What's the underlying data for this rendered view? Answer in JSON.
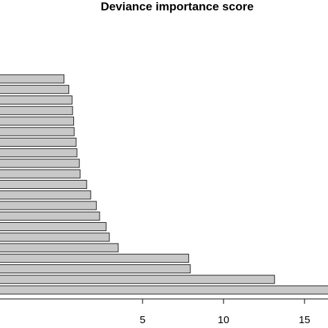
{
  "chart_data": {
    "type": "bar",
    "orientation": "horizontal",
    "title": "Deviance importance score",
    "xlabel": "",
    "ylabel": "",
    "xlim": [
      -3.8,
      16.45
    ],
    "xticks": [
      {
        "value": 5,
        "label": "5"
      },
      {
        "value": 10,
        "label": "10"
      },
      {
        "value": 15,
        "label": "15"
      }
    ],
    "values": [
      0.15,
      0.45,
      0.65,
      0.68,
      0.75,
      0.78,
      0.9,
      0.95,
      1.1,
      1.15,
      1.55,
      1.8,
      2.15,
      2.35,
      2.75,
      2.95,
      3.5,
      7.85,
      7.95,
      13.15,
      17.5
    ],
    "colors": {
      "bar_fill": "#c8c8c8",
      "bar_stroke": "#222222",
      "axis": "#000000"
    }
  }
}
